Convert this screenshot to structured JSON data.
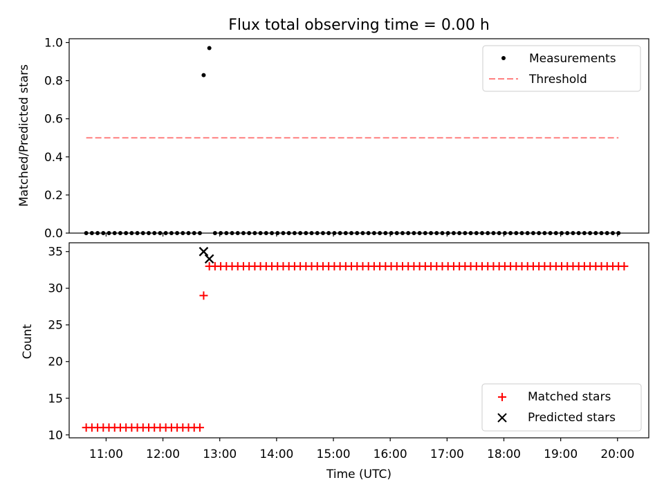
{
  "title": "Flux total observing time = 0.00 h",
  "chart_data": [
    {
      "type": "scatter",
      "ylabel": "Matched/Predicted stars",
      "ylim": [
        0,
        1.02
      ],
      "xlim": [
        "10:21",
        "20:33"
      ],
      "yticks": [
        "0.0",
        "0.2",
        "0.4",
        "0.6",
        "0.8",
        "1.0"
      ],
      "grid": false,
      "legend_position": "top-right",
      "series": [
        {
          "name": "Measurements",
          "style": "dot",
          "color": "#000000",
          "points": [
            {
              "range": [
                "10:39",
                "12:40"
              ],
              "step_min": 6,
              "y": 0
            },
            {
              "x": "12:43",
              "y": 0.829
            },
            {
              "x": "12:49",
              "y": 0.971
            },
            {
              "range": [
                "12:55",
                "20:04"
              ],
              "step_min": 6,
              "y": 0
            }
          ]
        },
        {
          "name": "Threshold",
          "style": "dashed-line",
          "color": "#ff7f7f",
          "x": [
            "10:39",
            "20:01"
          ],
          "y": [
            0.5,
            0.5
          ]
        }
      ]
    },
    {
      "type": "scatter",
      "ylabel": "Count",
      "xlabel": "Time (UTC)",
      "ylim": [
        9.6,
        36.2
      ],
      "xlim": [
        "10:21",
        "20:33"
      ],
      "yticks": [
        "10",
        "15",
        "20",
        "25",
        "30",
        "35"
      ],
      "xticks": [
        "11:00",
        "12:00",
        "13:00",
        "14:00",
        "15:00",
        "16:00",
        "17:00",
        "18:00",
        "19:00",
        "20:00"
      ],
      "grid": false,
      "legend_position": "lower-right",
      "series": [
        {
          "name": "Matched stars",
          "style": "plus",
          "color": "#ff0000",
          "points": [
            {
              "range": [
                "10:39",
                "12:40"
              ],
              "step_min": 6,
              "y": 11
            },
            {
              "x": "12:43",
              "y": 29
            },
            {
              "range": [
                "12:49",
                "20:07"
              ],
              "step_min": 6,
              "y": 33
            }
          ]
        },
        {
          "name": "Predicted stars",
          "style": "x",
          "color": "#000000",
          "points": [
            {
              "x": "12:43",
              "y": 35
            },
            {
              "x": "12:49",
              "y": 34
            }
          ]
        }
      ]
    }
  ]
}
